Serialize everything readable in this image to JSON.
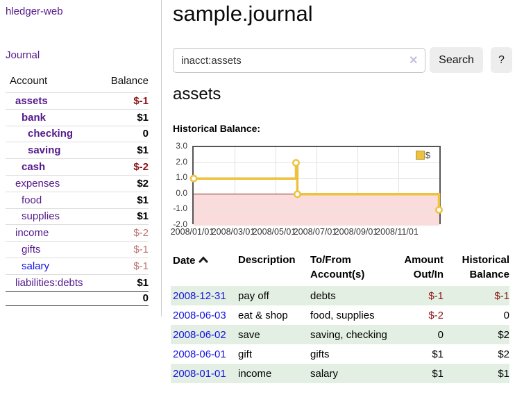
{
  "app": {
    "brand": "hledger-web"
  },
  "sidebar": {
    "journal_link": "Journal",
    "account_header": "Account",
    "balance_header": "Balance",
    "accounts": [
      {
        "name": "assets",
        "balance": "$-1"
      },
      {
        "name": "bank",
        "balance": "$1"
      },
      {
        "name": "checking",
        "balance": "0"
      },
      {
        "name": "saving",
        "balance": "$1"
      },
      {
        "name": "cash",
        "balance": "$-2"
      },
      {
        "name": "expenses",
        "balance": "$2"
      },
      {
        "name": "food",
        "balance": "$1"
      },
      {
        "name": "supplies",
        "balance": "$1"
      },
      {
        "name": "income",
        "balance": "$-2"
      },
      {
        "name": "gifts",
        "balance": "$-1"
      },
      {
        "name": "salary",
        "balance": "$-1"
      },
      {
        "name": "liabilities:debts",
        "balance": "$1"
      }
    ],
    "total": "0"
  },
  "main": {
    "title": "sample.journal",
    "search": {
      "value": "inacct:assets",
      "clear_icon": "✕",
      "button_label": "Search",
      "help_label": "?"
    },
    "account_heading": "assets",
    "chart_label": "Historical Balance:"
  },
  "chart_data": {
    "type": "line",
    "title": "Historical Balance:",
    "step": true,
    "series": [
      {
        "name": "$",
        "color": "#edc240",
        "points": [
          [
            "2008-01-01",
            1
          ],
          [
            "2008-06-01",
            2
          ],
          [
            "2008-06-03",
            0
          ],
          [
            "2008-12-31",
            -1
          ]
        ]
      }
    ],
    "x_tick_labels": [
      "2008/01/01",
      "2008/03/01",
      "2008/05/01",
      "2008/07/01",
      "2008/09/01",
      "2008/11/01"
    ],
    "y_tick_labels": [
      "3.0",
      "2.0",
      "1.0",
      "0.0",
      "-1.0",
      "-2.0"
    ],
    "ylim": [
      -2,
      3
    ],
    "xlim": [
      "2008-01-01",
      "2008-12-31"
    ],
    "grid": true,
    "legend_position": "top-right",
    "negative_region_color": "#fbdcdc",
    "zero_line_color": "#7d2121"
  },
  "register": {
    "headers": {
      "date": "Date",
      "description": "Description",
      "accounts": "To/From Account(s)",
      "amount": "Amount Out/In",
      "balance": "Historical Balance"
    },
    "rows": [
      {
        "date": "2008-12-31",
        "description": "pay off",
        "accounts": "debts",
        "amount": "$-1",
        "balance": "$-1"
      },
      {
        "date": "2008-06-03",
        "description": "eat & shop",
        "accounts": "food, supplies",
        "amount": "$-2",
        "balance": "0"
      },
      {
        "date": "2008-06-02",
        "description": "save",
        "accounts": "saving, checking",
        "amount": "0",
        "balance": "$2"
      },
      {
        "date": "2008-06-01",
        "description": "gift",
        "accounts": "gifts",
        "amount": "$1",
        "balance": "$2"
      },
      {
        "date": "2008-01-01",
        "description": "income",
        "accounts": "salary",
        "amount": "$1",
        "balance": "$1"
      }
    ]
  }
}
